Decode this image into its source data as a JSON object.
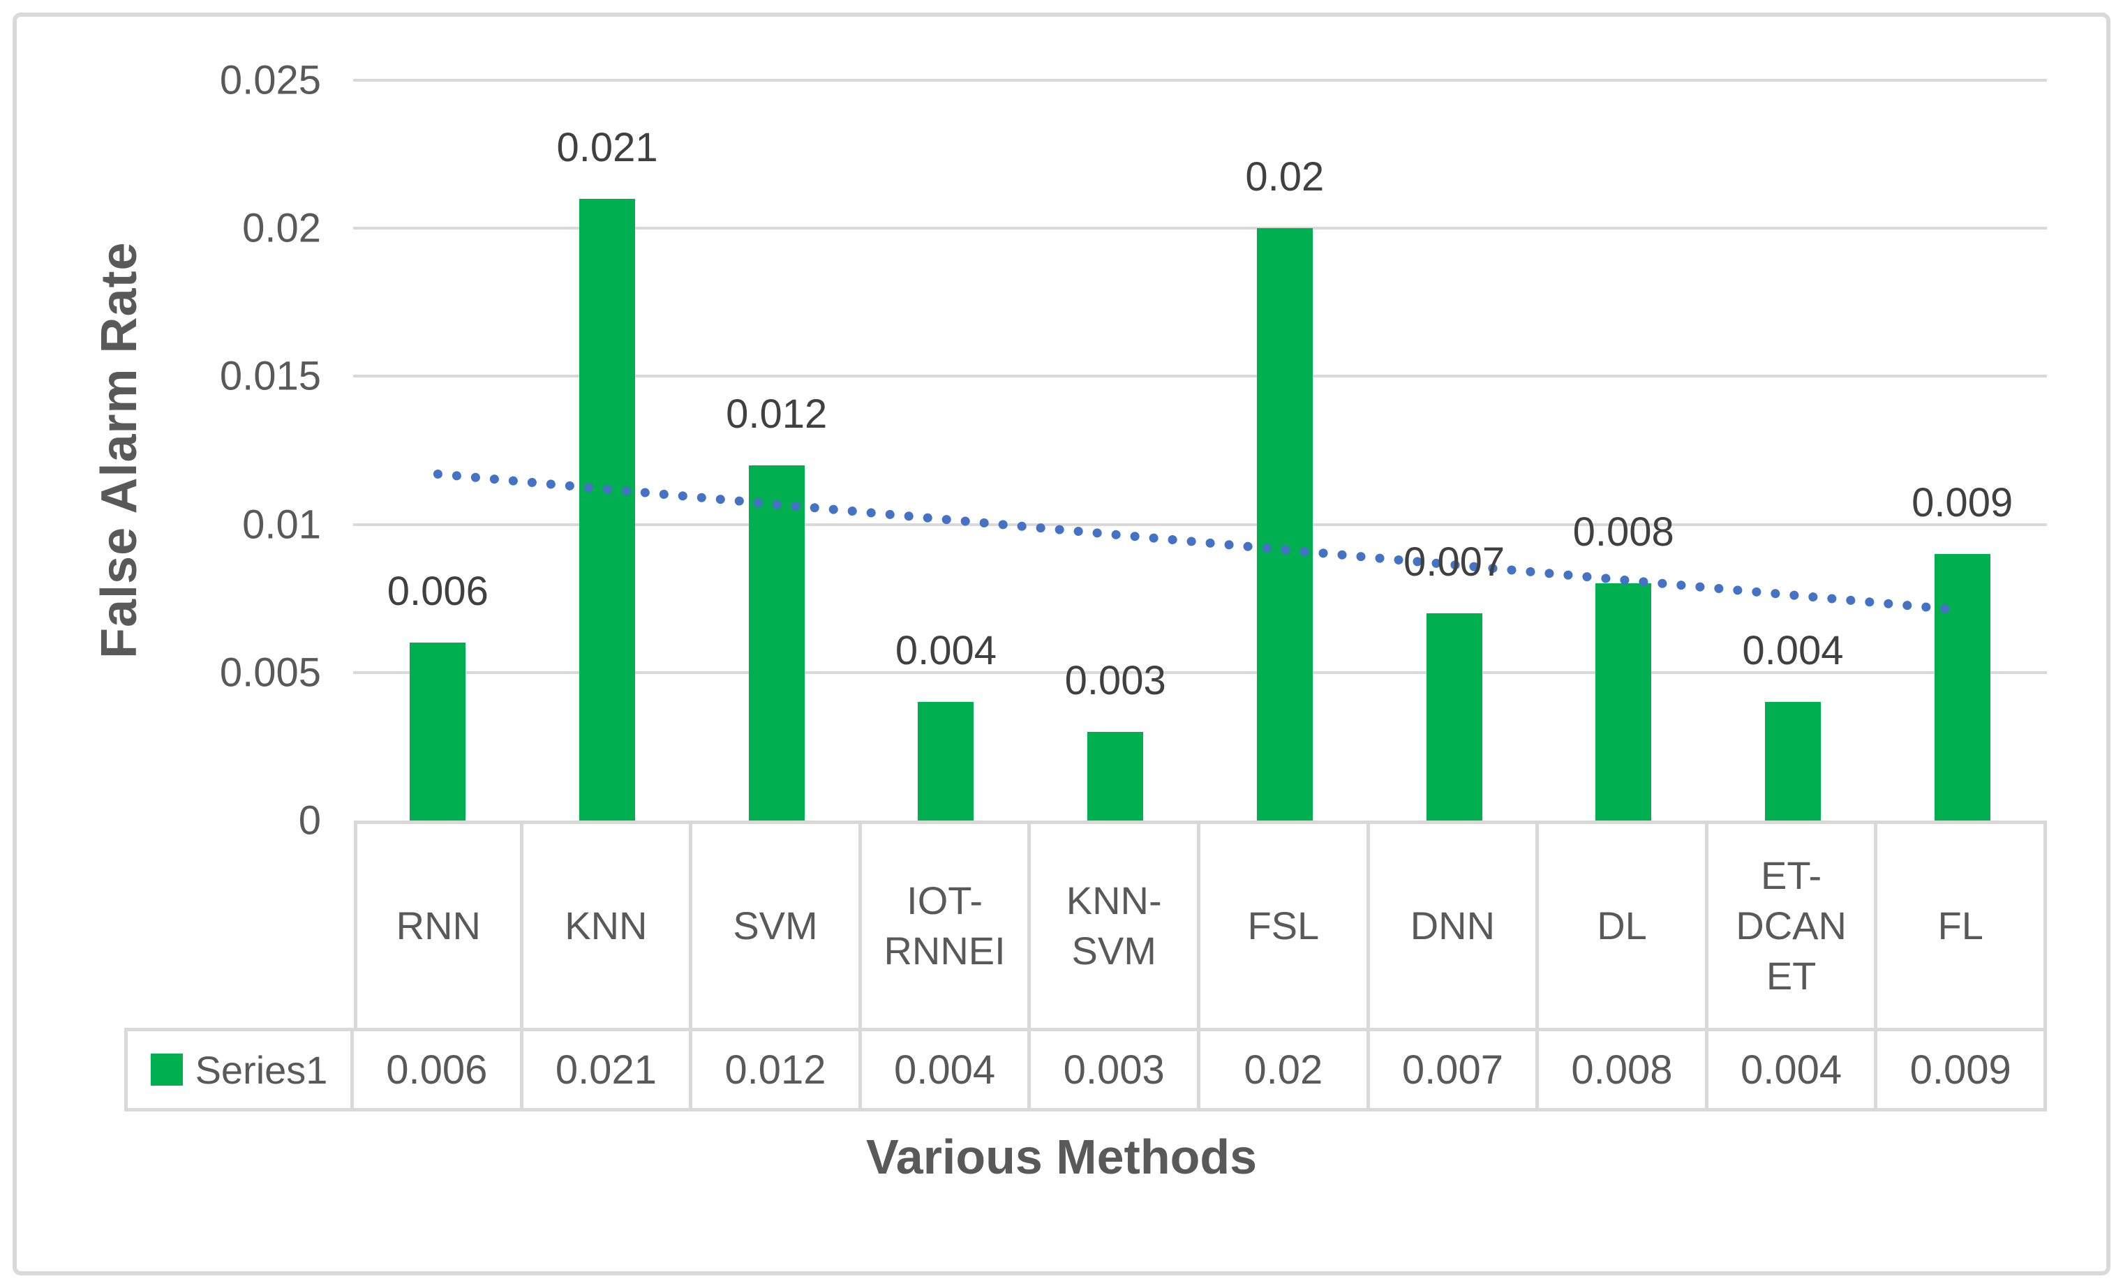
{
  "chart_data": {
    "type": "bar",
    "title": "",
    "xlabel": "Various Methods",
    "ylabel": "False Alarm Rate",
    "categories": [
      "RNN",
      "KNN",
      "SVM",
      "IOT-RNNEI",
      "KNN-SVM",
      "FSL",
      "DNN",
      "DL",
      "ET-DCANET",
      "FL"
    ],
    "categories_display": [
      [
        "RNN"
      ],
      [
        "KNN"
      ],
      [
        "SVM"
      ],
      [
        "IOT-",
        "RNNEI"
      ],
      [
        "KNN-",
        "SVM"
      ],
      [
        "FSL"
      ],
      [
        "DNN"
      ],
      [
        "DL"
      ],
      [
        "ET-",
        "DCAN",
        "ET"
      ],
      [
        "FL"
      ]
    ],
    "series": [
      {
        "name": "Series1",
        "values": [
          0.006,
          0.021,
          0.012,
          0.004,
          0.003,
          0.02,
          0.007,
          0.008,
          0.004,
          0.009
        ]
      }
    ],
    "data_labels": [
      "0.006",
      "0.021",
      "0.012",
      "0.004",
      "0.003",
      "0.02",
      "0.007",
      "0.008",
      "0.004",
      "0.009"
    ],
    "y_ticks": [
      {
        "label": "0",
        "value": 0
      },
      {
        "label": "0.005",
        "value": 0.005
      },
      {
        "label": "0.01",
        "value": 0.01
      },
      {
        "label": "0.015",
        "value": 0.015
      },
      {
        "label": "0.02",
        "value": 0.02
      },
      {
        "label": "0.025",
        "value": 0.025
      }
    ],
    "ylim": [
      0,
      0.025
    ],
    "grid": true,
    "legend_position": "table-left",
    "trendline": {
      "type": "linear",
      "style": "dotted",
      "start_value": 0.0117,
      "end_value": 0.0071
    },
    "colors": {
      "bar": "#00B050",
      "trendline": "#4472C4",
      "gridline": "#D9D9D9",
      "table_border": "#D9D9D9",
      "tick_text": "#595959",
      "data_label_text": "#404040",
      "axis_title_text": "#595959"
    }
  },
  "table": {
    "legend_label": "Series1",
    "values_row": [
      "0.006",
      "0.021",
      "0.012",
      "0.004",
      "0.003",
      "0.02",
      "0.007",
      "0.008",
      "0.004",
      "0.009"
    ]
  }
}
